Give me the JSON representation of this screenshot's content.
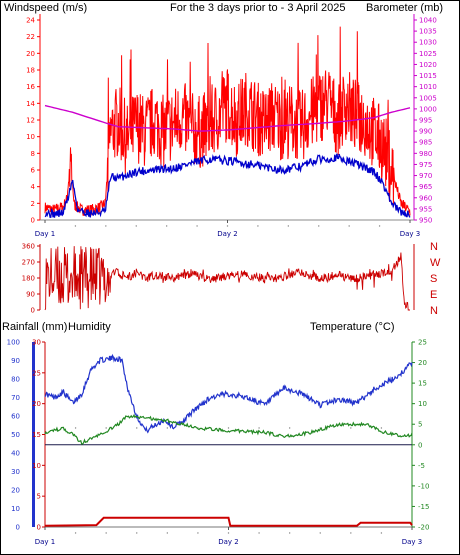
{
  "header": {
    "windspeed_label": "Windspeed (m/s)",
    "period_label": "For the 3 days prior to - 3 April 2025",
    "barometer_label": "Barometer (mb)"
  },
  "lower_header": {
    "rainfall_label": "Rainfall (mm)",
    "humidity_label": "Humidity",
    "temperature_label": "Temperature (°C)"
  },
  "colors": {
    "wind": "#ff0000",
    "wind_avg": "#0000cc",
    "barometer": "#cc00cc",
    "direction": "#cc0000",
    "rain": "#cc0000",
    "humidity": "#2233cc",
    "temperature": "#228822",
    "period": "#ffd000"
  },
  "chart_data": [
    {
      "type": "line",
      "x_labels": [
        "Day 1",
        "Day 2",
        "Day 3"
      ],
      "y_left": {
        "label": "Windspeed (m/s)",
        "range": [
          0,
          24
        ],
        "ticks": [
          0,
          2,
          4,
          6,
          8,
          10,
          12,
          14,
          16,
          18,
          20,
          22,
          24
        ]
      },
      "y_right": {
        "label": "Barometer (mb)",
        "range": [
          950,
          1040
        ],
        "ticks": [
          950,
          955,
          960,
          965,
          970,
          975,
          980,
          985,
          990,
          995,
          1000,
          1005,
          1010,
          1015,
          1020,
          1025,
          1030,
          1035,
          1040
        ]
      },
      "series": [
        {
          "name": "Windspeed",
          "axis": "left",
          "points": [
            [
              0,
              1.5
            ],
            [
              0.05,
              1.2
            ],
            [
              0.1,
              1.6
            ],
            [
              0.12,
              2.5
            ],
            [
              0.14,
              7.5
            ],
            [
              0.16,
              1.8
            ],
            [
              0.2,
              1.2
            ],
            [
              0.25,
              1.2
            ],
            [
              0.3,
              1.5
            ],
            [
              0.33,
              2.0
            ],
            [
              0.36,
              10.5
            ],
            [
              0.4,
              12.0
            ],
            [
              0.45,
              9.5
            ],
            [
              0.5,
              11.5
            ],
            [
              0.55,
              10.5
            ],
            [
              0.6,
              12.0
            ],
            [
              0.65,
              10.5
            ],
            [
              0.7,
              11.5
            ],
            [
              0.75,
              12.5
            ],
            [
              0.8,
              11.0
            ],
            [
              0.85,
              10.5
            ],
            [
              0.9,
              11.5
            ],
            [
              0.95,
              12.5
            ],
            [
              1.0,
              14.0
            ],
            [
              1.05,
              12.0
            ],
            [
              1.1,
              13.5
            ],
            [
              1.15,
              12.5
            ],
            [
              1.2,
              11.5
            ],
            [
              1.25,
              12.5
            ],
            [
              1.3,
              11.5
            ],
            [
              1.35,
              12.0
            ],
            [
              1.4,
              11.0
            ],
            [
              1.45,
              12.5
            ],
            [
              1.5,
              13.5
            ],
            [
              1.55,
              14.5
            ],
            [
              1.6,
              12.0
            ],
            [
              1.65,
              14.0
            ],
            [
              1.7,
              12.5
            ],
            [
              1.75,
              12.0
            ],
            [
              1.8,
              10.5
            ],
            [
              1.85,
              9.0
            ],
            [
              1.9,
              6.0
            ],
            [
              1.95,
              2.0
            ],
            [
              2.0,
              1.0
            ]
          ]
        },
        {
          "name": "Wind average",
          "axis": "left",
          "points": [
            [
              0,
              0.9
            ],
            [
              0.05,
              0.7
            ],
            [
              0.1,
              0.9
            ],
            [
              0.13,
              3.0
            ],
            [
              0.15,
              4.8
            ],
            [
              0.18,
              1.2
            ],
            [
              0.25,
              0.8
            ],
            [
              0.33,
              1.0
            ],
            [
              0.36,
              5.2
            ],
            [
              0.4,
              5.0
            ],
            [
              0.5,
              5.8
            ],
            [
              0.6,
              6.0
            ],
            [
              0.7,
              6.2
            ],
            [
              0.8,
              6.8
            ],
            [
              0.9,
              7.3
            ],
            [
              1.0,
              7.1
            ],
            [
              1.1,
              6.8
            ],
            [
              1.2,
              6.4
            ],
            [
              1.3,
              6.0
            ],
            [
              1.4,
              6.4
            ],
            [
              1.5,
              7.3
            ],
            [
              1.6,
              7.5
            ],
            [
              1.7,
              6.8
            ],
            [
              1.8,
              5.8
            ],
            [
              1.85,
              4.5
            ],
            [
              1.9,
              2.0
            ],
            [
              1.95,
              0.9
            ],
            [
              2.0,
              0.7
            ]
          ]
        },
        {
          "name": "Barometer",
          "axis": "right",
          "points": [
            [
              0,
              1001.5
            ],
            [
              0.15,
              998.5
            ],
            [
              0.3,
              994.5
            ],
            [
              0.4,
              992.0
            ],
            [
              0.55,
              991.5
            ],
            [
              0.7,
              991.0
            ],
            [
              0.85,
              990.0
            ],
            [
              1.0,
              990.5
            ],
            [
              1.15,
              991.5
            ],
            [
              1.3,
              992.5
            ],
            [
              1.5,
              993.5
            ],
            [
              1.65,
              994.5
            ],
            [
              1.8,
              996.0
            ],
            [
              1.9,
              998.5
            ],
            [
              2.0,
              1000.5
            ]
          ]
        }
      ]
    },
    {
      "type": "scatter",
      "x_labels": [],
      "y_left": {
        "label": "",
        "range": [
          0,
          360
        ],
        "ticks": [
          0,
          90,
          180,
          270,
          360
        ]
      },
      "y_right_labels": [
        "N",
        "W",
        "S",
        "E",
        "N"
      ],
      "series": [
        {
          "name": "Wind direction",
          "axis": "left",
          "points": [
            [
              0.02,
              340
            ],
            [
              0.05,
              200
            ],
            [
              0.08,
              350
            ],
            [
              0.1,
              60
            ],
            [
              0.13,
              330
            ],
            [
              0.15,
              240
            ],
            [
              0.18,
              100
            ],
            [
              0.22,
              300
            ],
            [
              0.26,
              20
            ],
            [
              0.3,
              300
            ],
            [
              0.33,
              100
            ],
            [
              0.38,
              220
            ],
            [
              0.45,
              180
            ],
            [
              0.5,
              210
            ],
            [
              0.55,
              170
            ],
            [
              0.6,
              200
            ],
            [
              0.7,
              180
            ],
            [
              0.8,
              205
            ],
            [
              0.9,
              175
            ],
            [
              1.0,
              190
            ],
            [
              1.1,
              200
            ],
            [
              1.2,
              175
            ],
            [
              1.3,
              190
            ],
            [
              1.4,
              210
            ],
            [
              1.5,
              180
            ],
            [
              1.6,
              195
            ],
            [
              1.7,
              175
            ],
            [
              1.8,
              200
            ],
            [
              1.9,
              220
            ],
            [
              1.95,
              300
            ],
            [
              1.97,
              40
            ],
            [
              2.0,
              10
            ]
          ]
        }
      ]
    },
    {
      "type": "line",
      "x_labels": [
        "Day 1",
        "Day 2",
        "Day 3"
      ],
      "y_rain": {
        "label": "Rainfall (mm)",
        "range": [
          0,
          30
        ],
        "ticks": [
          0,
          5,
          10,
          15,
          20,
          25,
          30
        ]
      },
      "y_humidity": {
        "label": "Humidity",
        "range": [
          0,
          100
        ],
        "ticks": [
          0,
          10,
          20,
          30,
          40,
          50,
          60,
          70,
          80,
          90,
          100
        ]
      },
      "y_temperature": {
        "label": "Temperature (°C)",
        "range": [
          -20,
          25
        ],
        "ticks": [
          -20,
          -15,
          -10,
          -5,
          0,
          5,
          10,
          15,
          20,
          25
        ]
      },
      "series": [
        {
          "name": "Humidity",
          "axis": "humidity",
          "points": [
            [
              0,
              72
            ],
            [
              0.05,
              70
            ],
            [
              0.1,
              73
            ],
            [
              0.15,
              67
            ],
            [
              0.2,
              72
            ],
            [
              0.25,
              85
            ],
            [
              0.3,
              90
            ],
            [
              0.38,
              91.5
            ],
            [
              0.42,
              90
            ],
            [
              0.45,
              75
            ],
            [
              0.5,
              60
            ],
            [
              0.55,
              52
            ],
            [
              0.6,
              55
            ],
            [
              0.65,
              58
            ],
            [
              0.7,
              54
            ],
            [
              0.75,
              57
            ],
            [
              0.8,
              62
            ],
            [
              0.9,
              70
            ],
            [
              1.0,
              72
            ],
            [
              1.1,
              70
            ],
            [
              1.2,
              66
            ],
            [
              1.3,
              75
            ],
            [
              1.4,
              72
            ],
            [
              1.5,
              66
            ],
            [
              1.6,
              69
            ],
            [
              1.7,
              67
            ],
            [
              1.8,
              75
            ],
            [
              1.9,
              80
            ],
            [
              1.95,
              84
            ],
            [
              2.0,
              89
            ]
          ]
        },
        {
          "name": "Temperature",
          "axis": "temperature",
          "points": [
            [
              0,
              3
            ],
            [
              0.1,
              4
            ],
            [
              0.15,
              2.5
            ],
            [
              0.2,
              0.5
            ],
            [
              0.3,
              2.5
            ],
            [
              0.4,
              5
            ],
            [
              0.45,
              7
            ],
            [
              0.55,
              6.5
            ],
            [
              0.65,
              6
            ],
            [
              0.75,
              5
            ],
            [
              0.85,
              4
            ],
            [
              1.0,
              3.5
            ],
            [
              1.2,
              3
            ],
            [
              1.3,
              2
            ],
            [
              1.45,
              3
            ],
            [
              1.6,
              5
            ],
            [
              1.75,
              5
            ],
            [
              1.85,
              3
            ],
            [
              1.9,
              2.5
            ],
            [
              1.95,
              2
            ],
            [
              2.0,
              2.5
            ]
          ]
        },
        {
          "name": "Rainfall",
          "axis": "rain",
          "points": [
            [
              0,
              0.2
            ],
            [
              0.28,
              0.3
            ],
            [
              0.32,
              1.5
            ],
            [
              1.0,
              1.5
            ],
            [
              1.01,
              0.2
            ],
            [
              1.7,
              0.2
            ],
            [
              1.72,
              0.7
            ],
            [
              1.99,
              0.7
            ],
            [
              2.0,
              0.3
            ]
          ]
        }
      ]
    }
  ]
}
